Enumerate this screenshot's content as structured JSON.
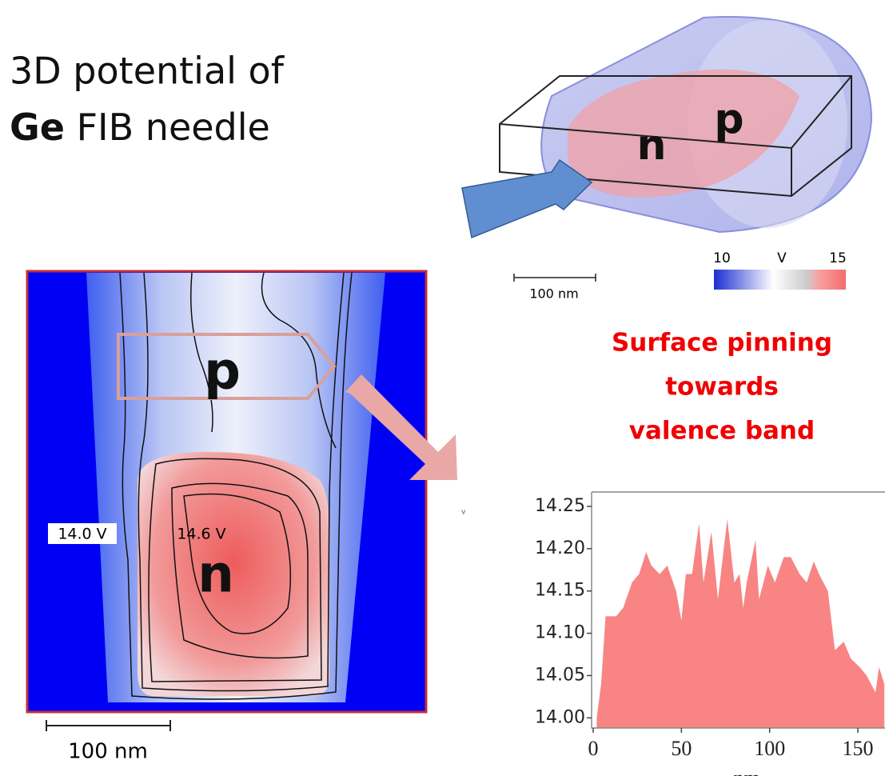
{
  "title": {
    "line1": "3D potential of",
    "line2_bold": "Ge",
    "line2_rest": "FIB needle"
  },
  "model_3d": {
    "n_label": "n",
    "p_label": "p",
    "scale_bar": "100 nm",
    "colorbar": {
      "low": "10",
      "unit": "V",
      "high": "15"
    }
  },
  "map": {
    "p_label": "p",
    "n_label": "n",
    "outer_contour": "14.0 V",
    "inner_contour": "14.6 V",
    "scale_bar": "100 nm"
  },
  "stray_mark": "v",
  "note": {
    "lines": [
      "Surface pinning",
      "towards",
      "valence band"
    ]
  },
  "chart_data": {
    "type": "area",
    "x_label": "nm",
    "x": [
      2,
      4.5,
      7,
      13,
      17,
      22,
      26,
      30,
      33,
      37.6,
      42,
      47,
      50,
      52.5,
      56,
      60,
      62.5,
      67,
      70.7,
      74,
      76,
      80,
      83,
      85,
      87,
      92,
      94,
      99,
      103,
      108,
      112,
      117,
      121,
      125,
      128,
      133,
      137,
      142,
      146,
      151,
      155,
      160,
      162,
      165
    ],
    "values": [
      14.0,
      14.04,
      14.12,
      14.12,
      14.13,
      14.16,
      14.17,
      14.196,
      14.18,
      14.17,
      14.18,
      14.15,
      14.115,
      14.17,
      14.17,
      14.23,
      14.16,
      14.22,
      14.14,
      14.2,
      14.235,
      14.16,
      14.17,
      14.13,
      14.16,
      14.21,
      14.14,
      14.18,
      14.16,
      14.19,
      14.19,
      14.17,
      14.16,
      14.185,
      14.17,
      14.15,
      14.08,
      14.09,
      14.07,
      14.06,
      14.05,
      14.03,
      14.06,
      14.04
    ],
    "color": "#f88484",
    "xlim": [
      0,
      165
    ],
    "ylim": [
      13.988,
      14.267
    ],
    "xticks": [
      0,
      50,
      100,
      150
    ],
    "yticks": [
      {
        "value": 14.0,
        "label": "14.00"
      },
      14.05,
      {
        "value": 14.1,
        "label": "14.10"
      },
      14.15,
      {
        "value": 14.2,
        "label": "14.20"
      },
      14.25
    ]
  }
}
